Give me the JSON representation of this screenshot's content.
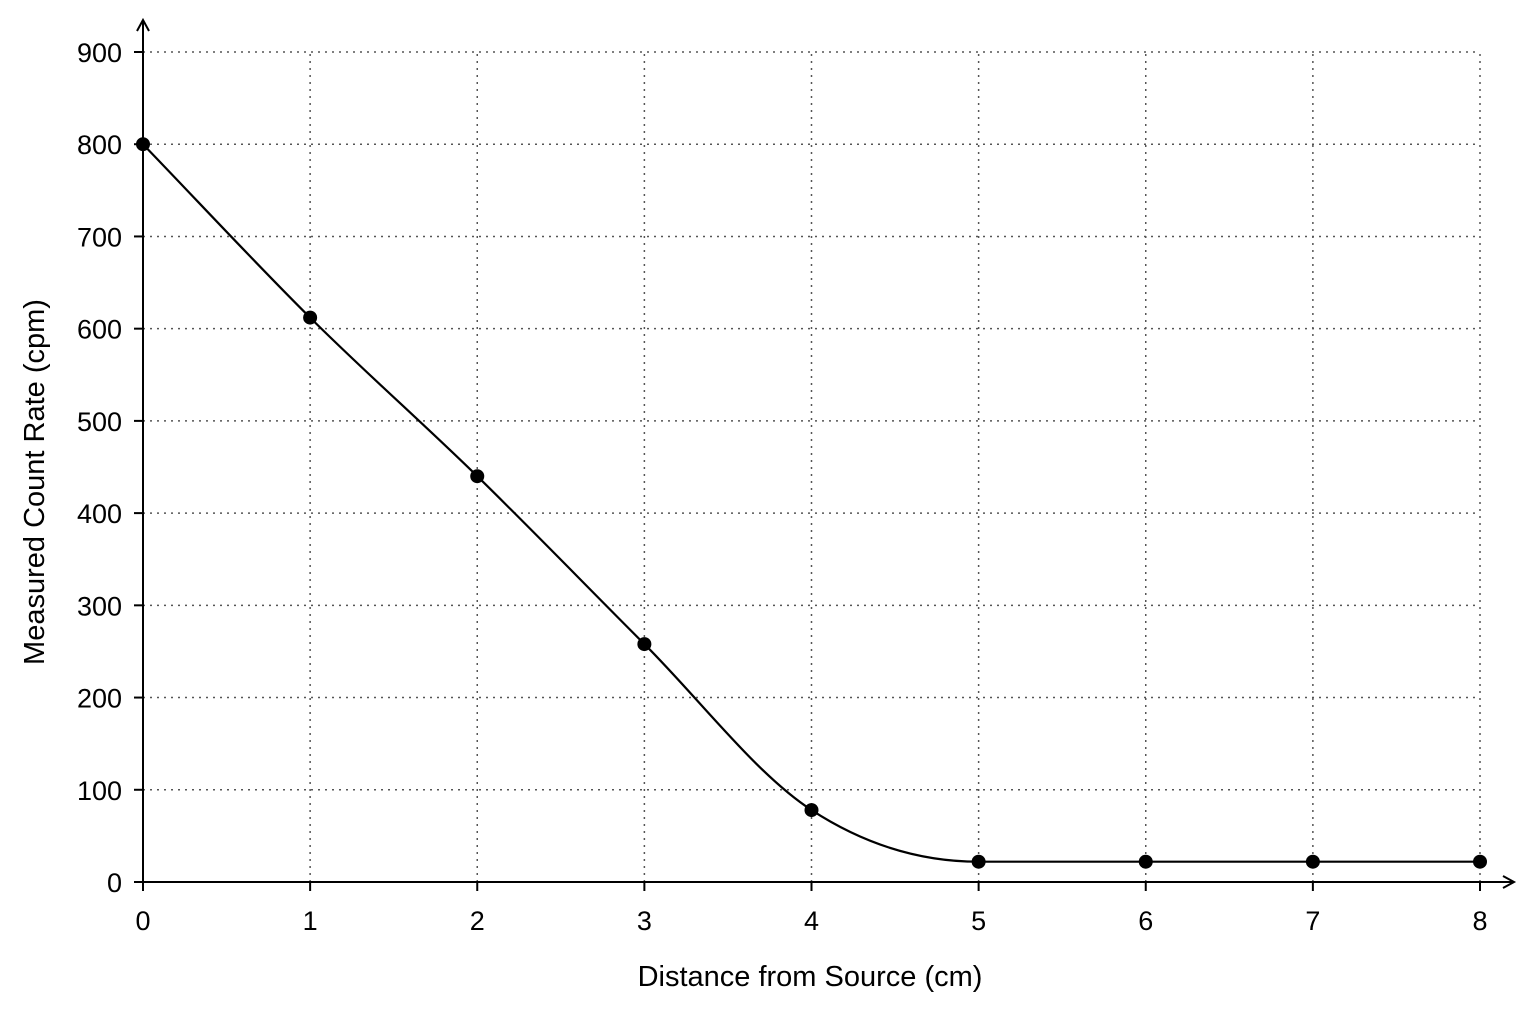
{
  "chart_data": {
    "type": "line",
    "title": "",
    "xlabel": "Distance from Source (cm)",
    "ylabel": "Measured Count Rate (cpm)",
    "xlim": [
      0,
      8
    ],
    "ylim": [
      0,
      900
    ],
    "x_ticks": [
      "0",
      "1",
      "2",
      "3",
      "4",
      "5",
      "6",
      "7",
      "8"
    ],
    "y_ticks": [
      "0",
      "100",
      "200",
      "300",
      "400",
      "500",
      "600",
      "700",
      "800",
      "900"
    ],
    "grid": true,
    "smooth": true,
    "series": [
      {
        "x": [
          0,
          1,
          2,
          3,
          4,
          5,
          6,
          7,
          8
        ],
        "y": [
          800,
          612,
          440,
          258,
          78,
          22,
          22,
          22,
          22
        ]
      }
    ]
  }
}
